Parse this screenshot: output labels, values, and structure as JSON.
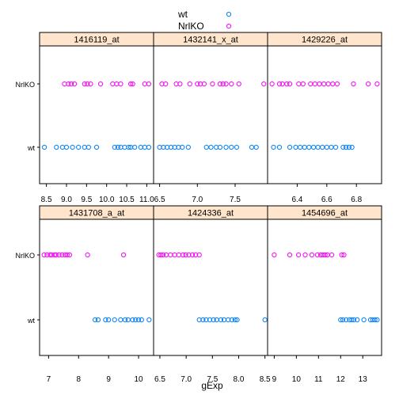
{
  "chart_data": {
    "type": "scatter",
    "xlabel": "gExp",
    "ylabel": "",
    "categories": [
      "NrlKO",
      "wt"
    ],
    "legend": {
      "placement": "top",
      "entries": [
        {
          "name": "wt",
          "color": "#0080ff"
        },
        {
          "name": "NrlKO",
          "color": "#ff00ff"
        }
      ]
    },
    "grid": false,
    "panels": [
      {
        "title": "1416119_at",
        "xlim": [
          8.33,
          11.17
        ],
        "ticks": [
          "8.5",
          "9.0",
          "9.5",
          "10.0",
          "10.5",
          "11.0"
        ],
        "tick_values": [
          8.5,
          9.0,
          9.5,
          10.0,
          10.5,
          11.0
        ],
        "series": [
          {
            "name": "wt",
            "values": [
              8.45,
              8.75,
              8.9,
              9.0,
              9.15,
              9.3,
              9.45,
              9.55,
              9.75,
              10.2,
              10.28,
              10.35,
              10.45,
              10.55,
              10.6,
              10.7,
              10.85,
              10.95,
              11.05
            ]
          },
          {
            "name": "NrlKO",
            "values": [
              8.95,
              9.05,
              9.12,
              9.2,
              9.45,
              9.52,
              9.6,
              9.85,
              10.15,
              10.25,
              10.35,
              10.6,
              10.65,
              10.95,
              11.05
            ]
          }
        ]
      },
      {
        "title": "1432141_x_at",
        "xlim": [
          6.42,
          7.93
        ],
        "ticks": [
          "6.5",
          "7.0",
          "7.5"
        ],
        "tick_values": [
          6.5,
          7.0,
          7.5
        ],
        "series": [
          {
            "name": "wt",
            "values": [
              6.5,
              6.55,
              6.6,
              6.65,
              6.7,
              6.75,
              6.8,
              6.88,
              7.12,
              7.18,
              7.25,
              7.3,
              7.38,
              7.45,
              7.52,
              7.72,
              7.78
            ]
          },
          {
            "name": "NrlKO",
            "values": [
              6.53,
              6.58,
              6.72,
              6.77,
              6.9,
              7.0,
              7.04,
              7.09,
              7.2,
              7.3,
              7.34,
              7.38,
              7.45,
              7.55,
              7.88
            ]
          }
        ]
      },
      {
        "title": "1429226_at",
        "xlim": [
          6.2,
          6.97
        ],
        "ticks": [
          "6.4",
          "6.6",
          "6.8"
        ],
        "tick_values": [
          6.4,
          6.6,
          6.8
        ],
        "series": [
          {
            "name": "wt",
            "values": [
              6.24,
              6.28,
              6.35,
              6.39,
              6.42,
              6.45,
              6.48,
              6.51,
              6.54,
              6.57,
              6.6,
              6.63,
              6.66,
              6.71,
              6.73,
              6.75,
              6.77
            ]
          },
          {
            "name": "NrlKO",
            "values": [
              6.23,
              6.28,
              6.3,
              6.33,
              6.35,
              6.41,
              6.44,
              6.49,
              6.52,
              6.55,
              6.58,
              6.61,
              6.64,
              6.67,
              6.78,
              6.88,
              6.94
            ]
          }
        ]
      },
      {
        "title": "1431708_a_at",
        "xlim": [
          6.7,
          10.5
        ],
        "ticks": [
          "7",
          "8",
          "9",
          "10"
        ],
        "tick_values": [
          7,
          8,
          9,
          10
        ],
        "series": [
          {
            "name": "wt",
            "values": [
              8.55,
              8.65,
              8.9,
              9.0,
              9.2,
              9.4,
              9.55,
              9.65,
              9.8,
              9.9,
              10.0,
              10.1,
              10.35
            ]
          },
          {
            "name": "NrlKO",
            "values": [
              6.85,
              6.95,
              7.05,
              7.1,
              7.2,
              7.25,
              7.35,
              7.45,
              7.55,
              7.62,
              7.7,
              8.3,
              9.5
            ]
          }
        ]
      },
      {
        "title": "1424336_at",
        "xlim": [
          6.38,
          8.55
        ],
        "ticks": [
          "6.5",
          "7.0",
          "7.5",
          "8.0",
          "8.5"
        ],
        "tick_values": [
          6.5,
          7.0,
          7.5,
          8.0,
          8.5
        ],
        "series": [
          {
            "name": "wt",
            "values": [
              7.25,
              7.32,
              7.38,
              7.45,
              7.52,
              7.58,
              7.66,
              7.72,
              7.8,
              7.87,
              7.93,
              7.97,
              8.5
            ]
          },
          {
            "name": "NrlKO",
            "values": [
              6.48,
              6.52,
              6.56,
              6.62,
              6.7,
              6.78,
              6.86,
              6.94,
              6.99,
              7.05,
              7.12,
              7.18,
              7.25
            ]
          }
        ]
      },
      {
        "title": "1454696_at",
        "xlim": [
          8.7,
          13.85
        ],
        "ticks": [
          "9",
          "10",
          "11",
          "12",
          "13"
        ],
        "tick_values": [
          9,
          10,
          11,
          12,
          13
        ],
        "series": [
          {
            "name": "wt",
            "values": [
              12.0,
              12.1,
              12.25,
              12.4,
              12.5,
              12.6,
              12.75,
              13.05,
              13.35,
              13.45,
              13.55,
              13.65
            ]
          },
          {
            "name": "NrlKO",
            "values": [
              9.0,
              9.7,
              10.1,
              10.4,
              10.7,
              10.95,
              11.1,
              11.2,
              11.3,
              11.4,
              11.6,
              12.05,
              12.15
            ]
          }
        ]
      }
    ]
  }
}
